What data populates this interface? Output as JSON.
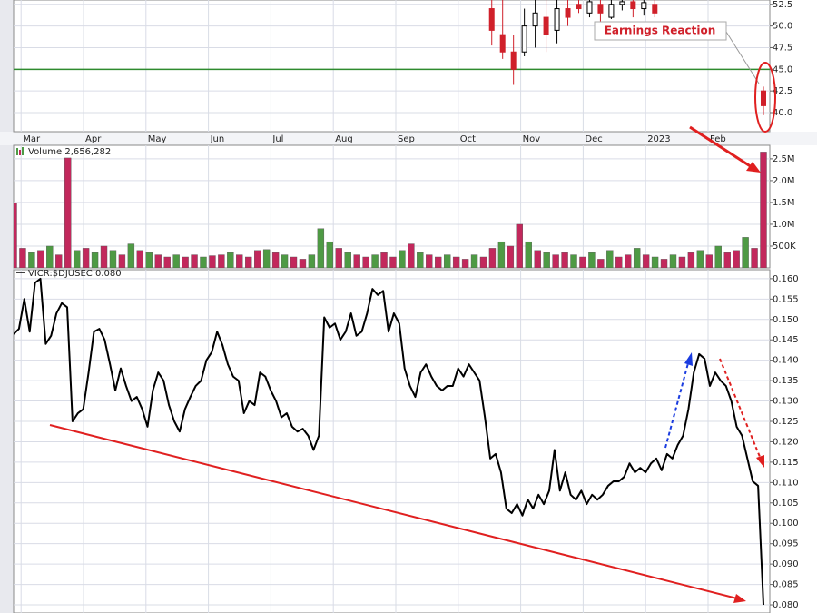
{
  "chart_data": [
    {
      "type": "candlestick",
      "annotation": "Earnings Reaction",
      "x_axis_labels": [
        "Mar",
        "Apr",
        "May",
        "Jun",
        "Jul",
        "Aug",
        "Sep",
        "Oct",
        "Nov",
        "Dec",
        "2023",
        "Feb"
      ],
      "open": [
        null,
        null,
        null,
        null,
        null,
        null,
        null,
        null,
        null,
        null,
        null,
        null,
        null,
        null,
        null,
        null,
        null,
        null,
        null,
        null,
        null,
        null,
        null,
        null,
        null,
        null,
        null,
        null,
        null,
        null,
        null,
        null,
        null,
        null,
        null,
        null,
        null,
        null,
        null,
        null,
        null,
        null,
        null,
        null,
        52,
        49,
        47,
        47,
        50,
        51,
        49.5,
        52,
        52.5,
        51.5,
        52.5,
        51,
        52.5,
        52.8,
        52,
        52.5,
        null,
        null,
        null,
        null,
        null,
        null,
        null,
        null,
        null,
        42.5
      ],
      "close": [
        null,
        null,
        null,
        null,
        null,
        null,
        null,
        null,
        null,
        null,
        null,
        null,
        null,
        null,
        null,
        null,
        null,
        null,
        null,
        null,
        null,
        null,
        null,
        null,
        null,
        null,
        null,
        null,
        null,
        null,
        null,
        null,
        null,
        null,
        null,
        null,
        null,
        null,
        null,
        null,
        null,
        null,
        null,
        null,
        49.5,
        47,
        45,
        50,
        51.5,
        49,
        52,
        51,
        52,
        52.8,
        51.5,
        52.5,
        52.8,
        52,
        52.7,
        51.5,
        null,
        null,
        null,
        null,
        null,
        null,
        null,
        null,
        null,
        40.8
      ],
      "high": [
        null,
        null,
        null,
        null,
        null,
        null,
        null,
        null,
        null,
        null,
        null,
        null,
        null,
        null,
        null,
        null,
        null,
        null,
        null,
        null,
        null,
        null,
        null,
        null,
        null,
        null,
        null,
        null,
        null,
        null,
        null,
        null,
        null,
        null,
        null,
        null,
        null,
        null,
        null,
        null,
        null,
        null,
        null,
        null,
        53.5,
        53.2,
        49,
        52,
        53.3,
        53.3,
        53.2,
        53.4,
        53.3,
        53.2,
        53.3,
        53.2,
        53.3,
        53.3,
        53.2,
        53.3,
        null,
        null,
        null,
        null,
        null,
        null,
        null,
        null,
        null,
        43
      ],
      "low": [
        null,
        null,
        null,
        null,
        null,
        null,
        null,
        null,
        null,
        null,
        null,
        null,
        null,
        null,
        null,
        null,
        null,
        null,
        null,
        null,
        null,
        null,
        null,
        null,
        null,
        null,
        null,
        null,
        null,
        null,
        null,
        null,
        null,
        null,
        null,
        null,
        null,
        null,
        null,
        null,
        null,
        null,
        null,
        null,
        47.75,
        46.2,
        43.2,
        46.5,
        47.5,
        47,
        48,
        50,
        51.5,
        51,
        50.5,
        50.8,
        51.8,
        51,
        51.2,
        51,
        null,
        null,
        null,
        null,
        null,
        null,
        null,
        null,
        null,
        39.7
      ],
      "up_color": "#000000",
      "down_color": "#d0202a",
      "hlines": [
        {
          "value": 45,
          "color": "#2e8b2e"
        }
      ],
      "ylim": [
        37.8,
        53.0
      ],
      "yticks": [
        52.5,
        {
          "value": 50,
          "label": "50.0"
        },
        47.5,
        {
          "value": 45,
          "label": "45.0"
        },
        42.5,
        {
          "value": 40,
          "label": "40.0"
        }
      ],
      "grid": true
    },
    {
      "type": "bar",
      "title": "Volume 2,656,282",
      "values": [
        1490000,
        450000,
        350000,
        400000,
        500000,
        300000,
        2520000,
        400000,
        450000,
        350000,
        500000,
        400000,
        300000,
        550000,
        400000,
        350000,
        300000,
        250000,
        300000,
        250000,
        300000,
        250000,
        280000,
        300000,
        350000,
        300000,
        250000,
        400000,
        420000,
        350000,
        300000,
        250000,
        200000,
        300000,
        900000,
        600000,
        450000,
        350000,
        300000,
        250000,
        300000,
        350000,
        250000,
        400000,
        550000,
        350000,
        300000,
        250000,
        300000,
        250000,
        200000,
        300000,
        250000,
        450000,
        600000,
        500000,
        1000000,
        600000,
        400000,
        350000,
        300000,
        350000,
        300000,
        250000,
        350000,
        200000,
        400000,
        250000,
        300000,
        450000,
        300000,
        250000,
        200000,
        300000,
        250000,
        350000,
        400000,
        300000,
        500000,
        350000,
        400000,
        700000,
        450000,
        2656282
      ],
      "colors": [
        "#c2285c",
        "#c2285c",
        "#4e9a44",
        "#c2285c",
        "#4e9a44",
        "#c2285c",
        "#c2285c",
        "#4e9a44",
        "#c2285c",
        "#4e9a44",
        "#c2285c",
        "#4e9a44",
        "#c2285c",
        "#4e9a44",
        "#c2285c",
        "#4e9a44",
        "#c2285c",
        "#c2285c",
        "#4e9a44",
        "#c2285c",
        "#c2285c",
        "#4e9a44",
        "#c2285c",
        "#c2285c",
        "#4e9a44",
        "#c2285c",
        "#c2285c",
        "#c2285c",
        "#4e9a44",
        "#c2285c",
        "#4e9a44",
        "#c2285c",
        "#c2285c",
        "#4e9a44",
        "#4e9a44",
        "#4e9a44",
        "#c2285c",
        "#4e9a44",
        "#c2285c",
        "#c2285c",
        "#4e9a44",
        "#c2285c",
        "#c2285c",
        "#4e9a44",
        "#c2285c",
        "#4e9a44",
        "#c2285c",
        "#c2285c",
        "#4e9a44",
        "#c2285c",
        "#c2285c",
        "#4e9a44",
        "#c2285c",
        "#c2285c",
        "#4e9a44",
        "#c2285c",
        "#c2285c",
        "#4e9a44",
        "#c2285c",
        "#4e9a44",
        "#c2285c",
        "#c2285c",
        "#4e9a44",
        "#c2285c",
        "#4e9a44",
        "#c2285c",
        "#4e9a44",
        "#c2285c",
        "#c2285c",
        "#4e9a44",
        "#c2285c",
        "#4e9a44",
        "#c2285c",
        "#4e9a44",
        "#c2285c",
        "#c2285c",
        "#4e9a44",
        "#c2285c",
        "#4e9a44",
        "#c2285c",
        "#c2285c",
        "#4e9a44",
        "#c2285c",
        "#c2285c"
      ],
      "ylim": [
        0,
        2810000
      ],
      "yticks": [
        {
          "value": 500000,
          "label": "500K"
        },
        {
          "value": 1000000,
          "label": "1.0M"
        },
        {
          "value": 1500000,
          "label": "1.5M"
        },
        {
          "value": 2000000,
          "label": "2.0M"
        },
        {
          "value": 2500000,
          "label": "2.5M"
        }
      ],
      "grid": true
    },
    {
      "type": "line",
      "title": "VICR:$DJUSEC 0.080",
      "color": "#000000",
      "values": [
        0.1464,
        0.1477,
        0.155,
        0.147,
        0.159,
        0.16,
        0.144,
        0.146,
        0.1515,
        0.154,
        0.153,
        0.125,
        0.127,
        0.128,
        0.137,
        0.147,
        0.1477,
        0.145,
        0.139,
        0.1326,
        0.138,
        0.1337,
        0.13,
        0.131,
        0.128,
        0.1237,
        0.1326,
        0.137,
        0.135,
        0.129,
        0.125,
        0.1225,
        0.128,
        0.131,
        0.1337,
        0.135,
        0.14,
        0.142,
        0.147,
        0.1437,
        0.139,
        0.136,
        0.135,
        0.127,
        0.13,
        0.129,
        0.137,
        0.136,
        0.1326,
        0.13,
        0.126,
        0.127,
        0.1237,
        0.1225,
        0.1232,
        0.1215,
        0.118,
        0.1215,
        0.1505,
        0.148,
        0.149,
        0.145,
        0.147,
        0.1515,
        0.146,
        0.147,
        0.1515,
        0.1575,
        0.156,
        0.157,
        0.147,
        0.1515,
        0.149,
        0.138,
        0.1337,
        0.131,
        0.137,
        0.139,
        0.136,
        0.1337,
        0.1326,
        0.1337,
        0.1337,
        0.138,
        0.136,
        0.139,
        0.137,
        0.135,
        0.126,
        0.1159,
        0.117,
        0.1125,
        0.1036,
        0.1025,
        0.1047,
        0.1019,
        0.1058,
        0.1036,
        0.107,
        0.1047,
        0.108,
        0.118,
        0.108,
        0.1125,
        0.107,
        0.1058,
        0.108,
        0.1047,
        0.107,
        0.1058,
        0.107,
        0.1092,
        0.1103,
        0.1103,
        0.1114,
        0.1147,
        0.1125,
        0.1136,
        0.1125,
        0.1147,
        0.1159,
        0.113,
        0.117,
        0.1159,
        0.1192,
        0.1215,
        0.128,
        0.137,
        0.1415,
        0.1404,
        0.1337,
        0.137,
        0.135,
        0.1337,
        0.13,
        0.1237,
        0.1215,
        0.1159,
        0.1103,
        0.1092,
        0.08
      ],
      "ylim": [
        0.078,
        0.1622
      ],
      "yticks": [
        {
          "value": 0.16,
          "label": "0.160"
        },
        0.155,
        {
          "value": 0.15,
          "label": "0.150"
        },
        0.145,
        {
          "value": 0.14,
          "label": "0.140"
        },
        0.135,
        {
          "value": 0.13,
          "label": "0.130"
        },
        0.125,
        {
          "value": 0.12,
          "label": "0.120"
        },
        0.115,
        {
          "value": 0.11,
          "label": "0.110"
        },
        0.105,
        {
          "value": 0.1,
          "label": "0.100"
        },
        0.095,
        {
          "value": 0.09,
          "label": "0.090"
        },
        0.085,
        {
          "value": 0.08,
          "label": "0.080"
        }
      ],
      "grid": true
    }
  ]
}
